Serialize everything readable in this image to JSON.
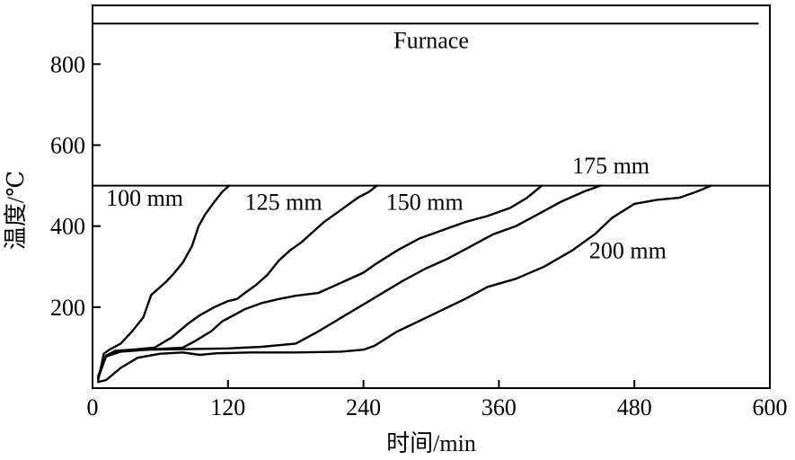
{
  "chart_data": {
    "type": "line",
    "xlabel": "时间/min",
    "ylabel": "温度/℃",
    "xlim": [
      0,
      600
    ],
    "ylim": [
      0,
      900
    ],
    "xticks": [
      0,
      120,
      240,
      360,
      480,
      600
    ],
    "yticks": [
      200,
      400,
      600,
      800
    ],
    "grid": false,
    "horizontal_lines": [
      {
        "label": "Furnace",
        "y": 900,
        "x": [
          0,
          590
        ]
      },
      {
        "label": "",
        "y": 500,
        "x": [
          0,
          600
        ]
      }
    ],
    "series": [
      {
        "name": "100 mm",
        "x": [
          5,
          10,
          15,
          25,
          35,
          45,
          52,
          58,
          65,
          72,
          80,
          88,
          94,
          100,
          108,
          115,
          121
        ],
        "y": [
          20,
          85,
          95,
          110,
          140,
          175,
          230,
          245,
          262,
          283,
          310,
          350,
          400,
          430,
          460,
          485,
          500
        ]
      },
      {
        "name": "125 mm",
        "x": [
          5,
          12,
          20,
          35,
          55,
          70,
          85,
          95,
          108,
          120,
          128,
          135,
          145,
          155,
          165,
          175,
          185,
          195,
          205,
          215,
          225,
          235,
          245,
          252
        ],
        "y": [
          25,
          80,
          92,
          95,
          100,
          125,
          160,
          180,
          200,
          215,
          220,
          235,
          255,
          280,
          315,
          340,
          360,
          385,
          410,
          430,
          450,
          470,
          485,
          500
        ]
      },
      {
        "name": "150 mm",
        "x": [
          5,
          12,
          20,
          40,
          60,
          80,
          90,
          105,
          115,
          125,
          135,
          150,
          165,
          180,
          200,
          220,
          240,
          250,
          270,
          290,
          310,
          330,
          350,
          370,
          385,
          398
        ],
        "y": [
          25,
          80,
          90,
          95,
          97,
          100,
          115,
          140,
          165,
          180,
          195,
          210,
          220,
          228,
          235,
          260,
          285,
          305,
          340,
          370,
          390,
          410,
          425,
          445,
          470,
          500
        ]
      },
      {
        "name": "175 mm",
        "x": [
          5,
          12,
          25,
          50,
          80,
          120,
          150,
          180,
          190,
          200,
          215,
          230,
          245,
          260,
          275,
          295,
          315,
          335,
          355,
          375,
          395,
          415,
          435,
          450
        ],
        "y": [
          30,
          78,
          90,
          95,
          96,
          98,
          102,
          110,
          125,
          140,
          165,
          190,
          215,
          240,
          265,
          295,
          320,
          350,
          380,
          400,
          430,
          460,
          485,
          500
        ]
      },
      {
        "name": "200 mm",
        "x": [
          5,
          12,
          25,
          40,
          60,
          80,
          95,
          110,
          140,
          180,
          220,
          240,
          250,
          270,
          300,
          330,
          350,
          375,
          400,
          425,
          445,
          460,
          480,
          500,
          520,
          535,
          548
        ],
        "y": [
          15,
          20,
          50,
          75,
          85,
          88,
          82,
          86,
          88,
          88,
          90,
          95,
          105,
          140,
          180,
          220,
          250,
          270,
          300,
          340,
          380,
          420,
          455,
          465,
          470,
          485,
          500
        ]
      }
    ],
    "annotations": [
      {
        "text": "Furnace",
        "x": 300,
        "y": 840
      },
      {
        "text": "100 mm",
        "x": 12,
        "y": 450
      },
      {
        "text": "125 mm",
        "x": 135,
        "y": 440
      },
      {
        "text": "150 mm",
        "x": 260,
        "y": 440
      },
      {
        "text": "175 mm",
        "x": 425,
        "y": 530
      },
      {
        "text": "200 mm",
        "x": 440,
        "y": 320
      }
    ]
  }
}
